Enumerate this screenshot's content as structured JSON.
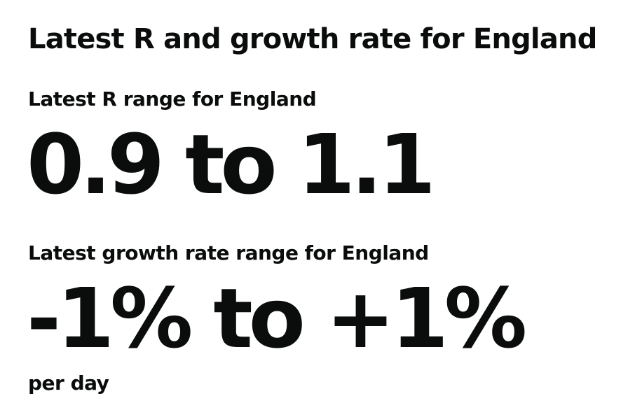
{
  "heading": "Latest R and growth rate for England",
  "r_section": {
    "label": "Latest R range for England",
    "value": "0.9 to 1.1"
  },
  "growth_section": {
    "label": "Latest growth rate range for England",
    "value": "-1% to +1%",
    "unit": "per day"
  }
}
